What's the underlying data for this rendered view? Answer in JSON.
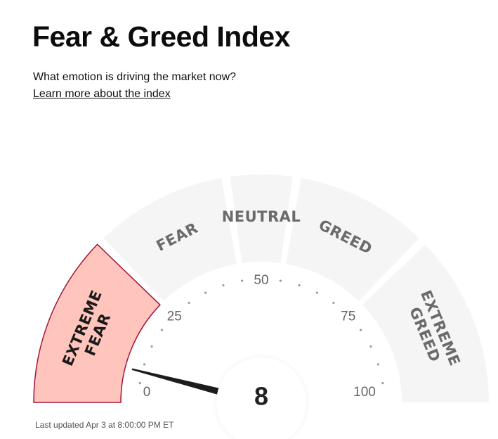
{
  "header": {
    "title": "Fear & Greed Index",
    "subtitle": "What emotion is driving the market now?",
    "learn_link": "Learn more about the index"
  },
  "gauge": {
    "value": 8,
    "value_text": "8",
    "min": 0,
    "max": 100,
    "active_segment": 0,
    "segments": [
      {
        "lines": [
          "EXTREME",
          "FEAR"
        ],
        "from": 0,
        "to": 25
      },
      {
        "lines": [
          "FEAR"
        ],
        "from": 25,
        "to": 45
      },
      {
        "lines": [
          "NEUTRAL"
        ],
        "from": 45,
        "to": 55
      },
      {
        "lines": [
          "GREED"
        ],
        "from": 55,
        "to": 75
      },
      {
        "lines": [
          "EXTREME",
          "GREED"
        ],
        "from": 75,
        "to": 100
      }
    ],
    "ticks": [
      {
        "value": 0,
        "label": "0"
      },
      {
        "value": 25,
        "label": "25"
      },
      {
        "value": 50,
        "label": "50"
      },
      {
        "value": 75,
        "label": "75"
      },
      {
        "value": 100,
        "label": "100"
      }
    ],
    "colors": {
      "active_fill": "#ffc5bc",
      "active_stroke": "#a3143a",
      "inactive_fill": "#f5f5f5",
      "inactive_text": "#6b6b6b",
      "active_text": "#1a1a1a",
      "needle": "#1c1c1c",
      "dots": "#9a9a9a"
    }
  },
  "footer": {
    "last_updated": "Last updated Apr 3 at 8:00:00 PM ET"
  }
}
